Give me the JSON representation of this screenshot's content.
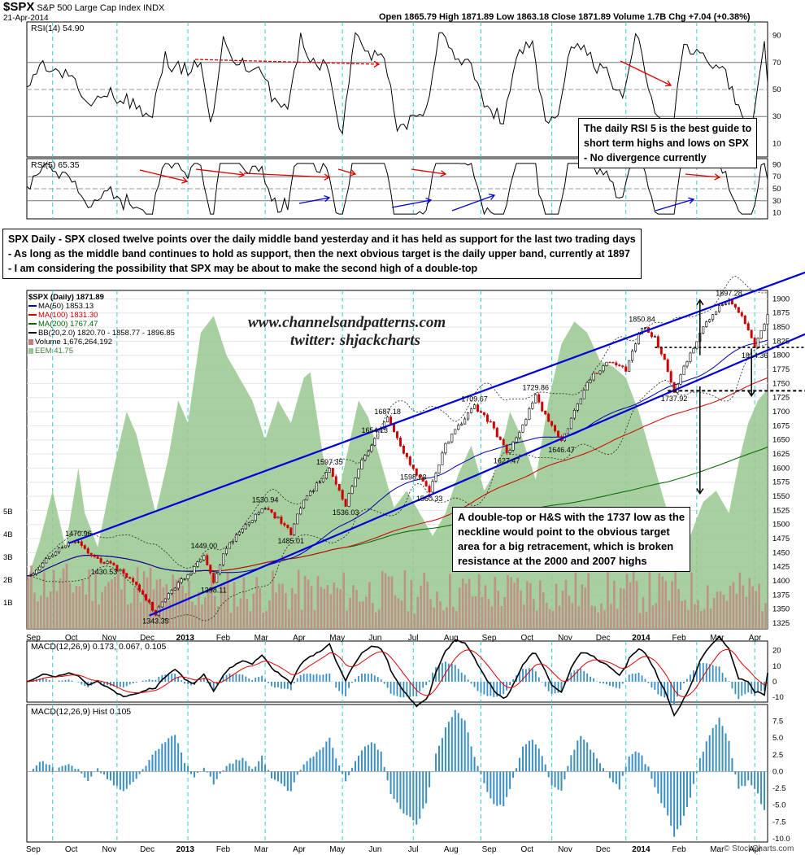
{
  "header": {
    "symbol": "$SPX",
    "name": "S&P 500 Large Cap Index INDX",
    "date": "21-Apr-2014",
    "quote": "Open 1865.79   High 1871.89   Low 1863.18   Close 1871.89   Volume 1.7B   Chg +7.04 (+0.38%)",
    "brand": "© StockCharts.com"
  },
  "annotations": {
    "rsi_note": [
      "The daily RSI 5 is the best guide to",
      "short term highs and lows on SPX",
      "- No divergence currently"
    ],
    "main_note": [
      "SPX Daily - SPX closed twelve points over the daily middle band yesterday and it has held as support for the last two trading days",
      "- As long as the middle band continues to hold as support, then the next obvious target is the daily upper band, currently at 1897",
      "- I am considering the possibility that SPX may be about to make the second high of a double-top"
    ],
    "target_note": [
      "A double-top or H&S with the 1737 low as the",
      "neckline would point to the obvious target",
      "area for a big retracement, which is broken",
      "resistance at the 2000 and 2007 highs"
    ],
    "watermark_1": "www.channelsandpatterns.com",
    "watermark_2": "twitter: shjackcharts"
  },
  "legend": {
    "price": "$SPX (Daily) 1871.89",
    "ma50": "MA(50) 1853.13",
    "ma100": "MA(100) 1831.30",
    "ma200": "MA(200) 1767.47",
    "bb": "BB(20,2.0) 1820.70 - 1858.77 - 1896.85",
    "volume": "Volume 1,676,264,192",
    "eem": "EEM 41.75"
  },
  "colors": {
    "up_candle": "#000000",
    "down_candle": "#cc0000",
    "ma50": "#0000aa",
    "ma100": "#cc0000",
    "ma200": "#006600",
    "eem_area": "#99c78f",
    "channel": "#0000dd",
    "cycle_line": "#33cccc",
    "macd_hist": "#3a8fc0",
    "volume_bar": "#c47f7f"
  },
  "chart_data": [
    {
      "type": "line",
      "title": "RSI(14) 54.90",
      "ylim": [
        0,
        100
      ],
      "yticks": [
        10,
        30,
        50,
        70,
        90
      ],
      "reference_lines": [
        30,
        70
      ],
      "last_value": 54.9
    },
    {
      "type": "line",
      "title": "RSI(5) 65.35",
      "ylim": [
        0,
        100
      ],
      "yticks": [
        10,
        30,
        50,
        70,
        90
      ],
      "reference_lines": [
        30,
        70
      ],
      "last_value": 65.35
    },
    {
      "type": "line",
      "title": "$SPX (Daily) 1871.89",
      "subtype": "candlestick",
      "x_ticks": [
        "Sep",
        "Oct",
        "Nov",
        "Dec",
        "2013",
        "Feb",
        "Mar",
        "Apr",
        "May",
        "Jun",
        "Jul",
        "Aug",
        "Sep",
        "Oct",
        "Nov",
        "Dec",
        "2014",
        "Feb",
        "Mar",
        "Apr"
      ],
      "ylim": [
        1315,
        1915
      ],
      "yticks": [
        1325,
        1350,
        1375,
        1400,
        1425,
        1450,
        1475,
        1500,
        1525,
        1550,
        1575,
        1600,
        1625,
        1650,
        1675,
        1700,
        1725,
        1750,
        1775,
        1800,
        1825,
        1850,
        1875,
        1900
      ],
      "volume_ticks": [
        "1B",
        "2B",
        "3B",
        "4B",
        "5B"
      ],
      "price_path": [
        [
          0,
          1405
        ],
        [
          6,
          1440
        ],
        [
          10,
          1455
        ],
        [
          15,
          1470.96
        ],
        [
          20,
          1445
        ],
        [
          25,
          1430.53
        ],
        [
          30,
          1415
        ],
        [
          35,
          1385
        ],
        [
          40,
          1343.35
        ],
        [
          45,
          1385
        ],
        [
          50,
          1410
        ],
        [
          55,
          1449.0
        ],
        [
          58,
          1398.11
        ],
        [
          62,
          1460
        ],
        [
          68,
          1500
        ],
        [
          74,
          1530.94
        ],
        [
          78,
          1510
        ],
        [
          82,
          1485.01
        ],
        [
          86,
          1545
        ],
        [
          90,
          1570
        ],
        [
          94,
          1597.35
        ],
        [
          99,
          1536.03
        ],
        [
          103,
          1600
        ],
        [
          108,
          1654.13
        ],
        [
          112,
          1687.18
        ],
        [
          116,
          1640
        ],
        [
          120,
          1598.23
        ],
        [
          125,
          1560.33
        ],
        [
          130,
          1640
        ],
        [
          134,
          1675
        ],
        [
          139,
          1709.67
        ],
        [
          144,
          1680
        ],
        [
          149,
          1627.47
        ],
        [
          153,
          1660
        ],
        [
          158,
          1729.86
        ],
        [
          162,
          1680
        ],
        [
          166,
          1646.47
        ],
        [
          170,
          1700
        ],
        [
          175,
          1760
        ],
        [
          181,
          1790
        ],
        [
          186,
          1775
        ],
        [
          191,
          1850.84
        ],
        [
          195,
          1830
        ],
        [
          198,
          1790
        ],
        [
          201,
          1737.92
        ],
        [
          205,
          1790
        ],
        [
          209,
          1840
        ],
        [
          214,
          1880
        ],
        [
          218,
          1897.28
        ],
        [
          223,
          1860
        ],
        [
          226,
          1814.36
        ],
        [
          230,
          1871.89
        ]
      ],
      "eem_path": [
        [
          0,
          1400
        ],
        [
          4,
          1470
        ],
        [
          8,
          1560
        ],
        [
          12,
          1460
        ],
        [
          16,
          1600
        ],
        [
          18,
          1520
        ],
        [
          22,
          1460
        ],
        [
          27,
          1600
        ],
        [
          31,
          1700
        ],
        [
          34,
          1660
        ],
        [
          40,
          1520
        ],
        [
          44,
          1620
        ],
        [
          47,
          1720
        ],
        [
          50,
          1680
        ],
        [
          54,
          1840
        ],
        [
          58,
          1870
        ],
        [
          62,
          1800
        ],
        [
          66,
          1760
        ],
        [
          70,
          1720
        ],
        [
          74,
          1650
        ],
        [
          78,
          1720
        ],
        [
          82,
          1680
        ],
        [
          86,
          1760
        ],
        [
          88,
          1770
        ],
        [
          92,
          1620
        ],
        [
          97,
          1560
        ],
        [
          100,
          1640
        ],
        [
          103,
          1720
        ],
        [
          106,
          1690
        ],
        [
          110,
          1610
        ],
        [
          114,
          1530
        ],
        [
          118,
          1560
        ],
        [
          122,
          1520
        ],
        [
          126,
          1480
        ],
        [
          130,
          1520
        ],
        [
          134,
          1590
        ],
        [
          138,
          1640
        ],
        [
          142,
          1560
        ],
        [
          146,
          1600
        ],
        [
          150,
          1700
        ],
        [
          154,
          1650
        ],
        [
          158,
          1580
        ],
        [
          162,
          1720
        ],
        [
          166,
          1820
        ],
        [
          170,
          1860
        ],
        [
          174,
          1840
        ],
        [
          178,
          1790
        ],
        [
          182,
          1780
        ],
        [
          186,
          1760
        ],
        [
          190,
          1700
        ],
        [
          194,
          1620
        ],
        [
          198,
          1540
        ],
        [
          202,
          1470
        ],
        [
          206,
          1480
        ],
        [
          210,
          1540
        ],
        [
          214,
          1560
        ],
        [
          218,
          1520
        ],
        [
          221,
          1610
        ],
        [
          224,
          1680
        ],
        [
          227,
          1720
        ],
        [
          230,
          1740
        ]
      ],
      "price_labels": [
        "1470.96",
        "1430.53",
        "1343.35",
        "1449.00",
        "1398.11",
        "1530.94",
        "1485.01",
        "1597.35",
        "1536.03",
        "1654.13",
        "1687.18",
        "1598.23",
        "1560.33",
        "1709.67",
        "1627.47",
        "1729.86",
        "1646.47",
        "1850.84",
        "1737.92",
        "1897.28",
        "1814.36"
      ],
      "channel_upper": [
        [
          1470.96,
          15
        ],
        [
          1897.28,
          218
        ]
      ],
      "channel_lower": [
        [
          1343.35,
          40
        ],
        [
          1737.92,
          201
        ]
      ],
      "neckline": 1737,
      "support_line": 1814
    },
    {
      "type": "line",
      "title": "MACD(12,26,9) 0.173, 0.067, 0.105",
      "series": [
        {
          "name": "MACD(12,26,9)",
          "last": 0.173
        },
        {
          "name": "Signal",
          "last": 0.067
        },
        {
          "name": "Histogram",
          "last": 0.105
        }
      ],
      "ylim": [
        -13,
        26
      ],
      "yticks": [
        -10,
        0,
        10,
        20
      ]
    },
    {
      "type": "bar",
      "title": "MACD(12,26,9) Hist 0.105",
      "ylim": [
        -10.5,
        10
      ],
      "yticks": [
        -10.0,
        -7.5,
        -5.0,
        -2.5,
        0.0,
        2.5,
        5.0,
        7.5
      ],
      "hist_path": [
        [
          0,
          0
        ],
        [
          5,
          1.5
        ],
        [
          9,
          0.2
        ],
        [
          13,
          1.0
        ],
        [
          16,
          0.3
        ],
        [
          19,
          -1.2
        ],
        [
          22,
          0.5
        ],
        [
          26,
          -1.5
        ],
        [
          30,
          -3.0
        ],
        [
          34,
          -1.2
        ],
        [
          38,
          1.8
        ],
        [
          42,
          4.0
        ],
        [
          46,
          5.5
        ],
        [
          49,
          1.5
        ],
        [
          52,
          -1.0
        ],
        [
          55,
          0.8
        ],
        [
          58,
          -1.8
        ],
        [
          60,
          -0.5
        ],
        [
          63,
          1.2
        ],
        [
          67,
          2.0
        ],
        [
          70,
          0.3
        ],
        [
          73,
          2.2
        ],
        [
          76,
          -1.0
        ],
        [
          79,
          -2.0
        ],
        [
          82,
          -3.0
        ],
        [
          85,
          0.5
        ],
        [
          88,
          2.0
        ],
        [
          91,
          3.2
        ],
        [
          94,
          5.0
        ],
        [
          96,
          1.8
        ],
        [
          99,
          -1.5
        ],
        [
          101,
          0.8
        ],
        [
          104,
          3.2
        ],
        [
          107,
          4.5
        ],
        [
          110,
          2.8
        ],
        [
          113,
          -3.5
        ],
        [
          116,
          -5.5
        ],
        [
          119,
          -7.0
        ],
        [
          121,
          -8.0
        ],
        [
          124,
          -4.5
        ],
        [
          127,
          2.5
        ],
        [
          130,
          6.5
        ],
        [
          133,
          9.0
        ],
        [
          136,
          7.5
        ],
        [
          139,
          2.0
        ],
        [
          142,
          -1.8
        ],
        [
          145,
          -4.8
        ],
        [
          148,
          -5.2
        ],
        [
          151,
          -1.0
        ],
        [
          154,
          3.5
        ],
        [
          157,
          5.0
        ],
        [
          160,
          2.5
        ],
        [
          163,
          -2.2
        ],
        [
          166,
          -2.8
        ],
        [
          169,
          2.5
        ],
        [
          172,
          5.5
        ],
        [
          175,
          3.5
        ],
        [
          178,
          1.2
        ],
        [
          181,
          -0.8
        ],
        [
          184,
          -2.5
        ],
        [
          187,
          2.5
        ],
        [
          190,
          3.0
        ],
        [
          193,
          0.5
        ],
        [
          196,
          -3.5
        ],
        [
          199,
          -6.5
        ],
        [
          201,
          -9.5
        ],
        [
          203,
          -8.0
        ],
        [
          206,
          -4.0
        ],
        [
          209,
          2.0
        ],
        [
          212,
          5.5
        ],
        [
          215,
          8.0
        ],
        [
          218,
          4.5
        ],
        [
          221,
          -2.8
        ],
        [
          224,
          -1.5
        ],
        [
          227,
          -3.5
        ],
        [
          229,
          -5.8
        ],
        [
          230,
          0.105
        ]
      ]
    }
  ]
}
